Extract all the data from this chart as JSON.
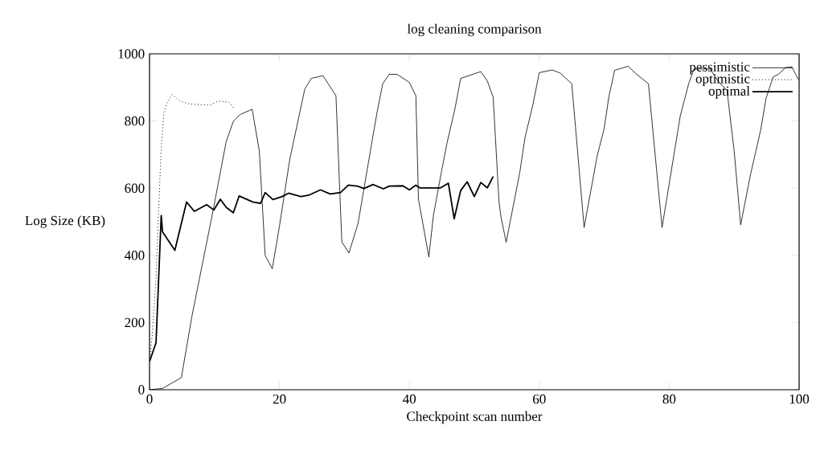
{
  "chart_data": {
    "type": "line",
    "title": "log cleaning comparison",
    "xlabel": "Checkpoint scan number",
    "ylabel": "Log Size (KB)",
    "xlim": [
      0,
      100
    ],
    "ylim": [
      0,
      1000
    ],
    "xticks": [
      0,
      20,
      40,
      60,
      80,
      100
    ],
    "yticks": [
      0,
      200,
      400,
      600,
      800,
      1000
    ],
    "legend": "top right",
    "series": [
      {
        "name": "pessimistic",
        "color": "#000000",
        "line_style": "solid",
        "x": [
          0,
          2,
          4.9,
          6.5,
          9.8,
          11.8,
          12.9,
          13.9,
          15.8,
          16.9,
          17.8,
          18.9,
          20,
          21.6,
          23.9,
          24.9,
          26.7,
          28.7,
          29.6,
          30.7,
          32.1,
          34,
          35,
          35.9,
          36.9,
          38.1,
          40,
          41,
          41.4,
          42,
          43,
          43.7,
          45,
          45.8,
          47,
          47.9,
          51,
          52,
          52.9,
          53.8,
          54.1,
          54.9,
          57,
          57.8,
          59,
          60,
          62,
          63.2,
          65,
          66.9,
          68.9,
          70,
          70.7,
          71.6,
          73.7,
          75,
          76.8,
          78.9,
          81.7,
          83,
          83.8,
          86.3,
          87.5,
          88.9,
          90,
          91,
          92.5,
          94.1,
          94.9,
          96,
          96.8,
          97.9,
          98.9,
          99.9
        ],
        "values": [
          0,
          4,
          36,
          216,
          535,
          739,
          799,
          819,
          835,
          711,
          400,
          360,
          487,
          687,
          895,
          927,
          935,
          875,
          440,
          407,
          495,
          711,
          823,
          911,
          939,
          939,
          915,
          875,
          567,
          503,
          395,
          519,
          655,
          735,
          835,
          927,
          947,
          919,
          871,
          559,
          515,
          439,
          647,
          751,
          847,
          944,
          952,
          943,
          911,
          483,
          695,
          779,
          871,
          951,
          963,
          939,
          911,
          483,
          815,
          911,
          955,
          955,
          919,
          891,
          711,
          491,
          639,
          775,
          867,
          931,
          939,
          959,
          961,
          923
        ]
      },
      {
        "name": "optimistic",
        "color": "#000000",
        "line_style": "dotted",
        "x": [
          0,
          0.4,
          1,
          1.4,
          1.8,
          2.2,
          2.6,
          3.5,
          4.7,
          6.1,
          7.8,
          9.2,
          10.6,
          12.2,
          13.1
        ],
        "values": [
          84,
          160,
          335,
          535,
          719,
          823,
          851,
          879,
          859,
          851,
          849,
          847,
          859,
          857,
          835
        ]
      },
      {
        "name": "optimal",
        "color": "#000000",
        "line_style": "solid",
        "x": [
          0,
          1,
          1.8,
          2,
          3.9,
          5.7,
          6.9,
          8.8,
          9.9,
          10.9,
          11.8,
          12.9,
          13.8,
          15.9,
          17.1,
          17.8,
          19,
          20.4,
          21.4,
          23.3,
          24.5,
          26.3,
          27.8,
          29.4,
          30.6,
          32,
          33,
          34.4,
          36,
          36.9,
          39,
          40,
          41,
          41.6,
          44.8,
          46,
          46.9,
          47.9,
          48.9,
          50,
          51,
          52,
          52.9
        ],
        "values": [
          84,
          140,
          519,
          470,
          415,
          559,
          531,
          551,
          535,
          567,
          543,
          527,
          577,
          559,
          555,
          587,
          566,
          575,
          585,
          575,
          579,
          595,
          583,
          587,
          609,
          606,
          599,
          611,
          598,
          606,
          607,
          595,
          609,
          601,
          601,
          615,
          509,
          593,
          619,
          575,
          617,
          601,
          635
        ]
      }
    ]
  }
}
